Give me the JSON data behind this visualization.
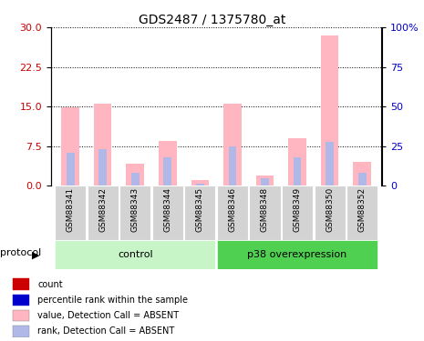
{
  "title": "GDS2487 / 1375780_at",
  "samples": [
    "GSM88341",
    "GSM88342",
    "GSM88343",
    "GSM88344",
    "GSM88345",
    "GSM88346",
    "GSM88348",
    "GSM88349",
    "GSM88350",
    "GSM88352"
  ],
  "value_absent": [
    14.8,
    15.5,
    4.2,
    8.5,
    1.1,
    15.5,
    2.0,
    9.0,
    28.5,
    4.5
  ],
  "rank_absent_pct": [
    21.0,
    23.0,
    8.0,
    18.0,
    1.5,
    25.0,
    5.0,
    18.0,
    28.0,
    8.0
  ],
  "count_val": [
    0.12,
    0.12,
    0.12,
    0.12,
    0.12,
    0.12,
    0.12,
    0.12,
    0.12,
    0.12
  ],
  "ylim_left": [
    0,
    30
  ],
  "ylim_right": [
    0,
    100
  ],
  "yticks_left": [
    0,
    7.5,
    15,
    22.5,
    30
  ],
  "yticks_right": [
    0,
    25,
    50,
    75,
    100
  ],
  "color_value_absent": "#ffb6c1",
  "color_rank_absent": "#b0b8e8",
  "color_count": "#cc0000",
  "color_rank_present": "#0000cc",
  "bar_width": 0.55,
  "legend_items": [
    {
      "label": "count",
      "color": "#cc0000"
    },
    {
      "label": "percentile rank within the sample",
      "color": "#0000cc"
    },
    {
      "label": "value, Detection Call = ABSENT",
      "color": "#ffb6c1"
    },
    {
      "label": "rank, Detection Call = ABSENT",
      "color": "#b0b8e8"
    }
  ],
  "protocol_label": "protocol",
  "control_label": "control",
  "p38_label": "p38 overexpression",
  "control_color": "#c8f5c8",
  "p38_color": "#50d050",
  "sample_col_color": "#d3d3d3",
  "left_axis_color": "#cc0000",
  "right_axis_color": "#0000cc",
  "n_control": 5,
  "n_p38": 5
}
